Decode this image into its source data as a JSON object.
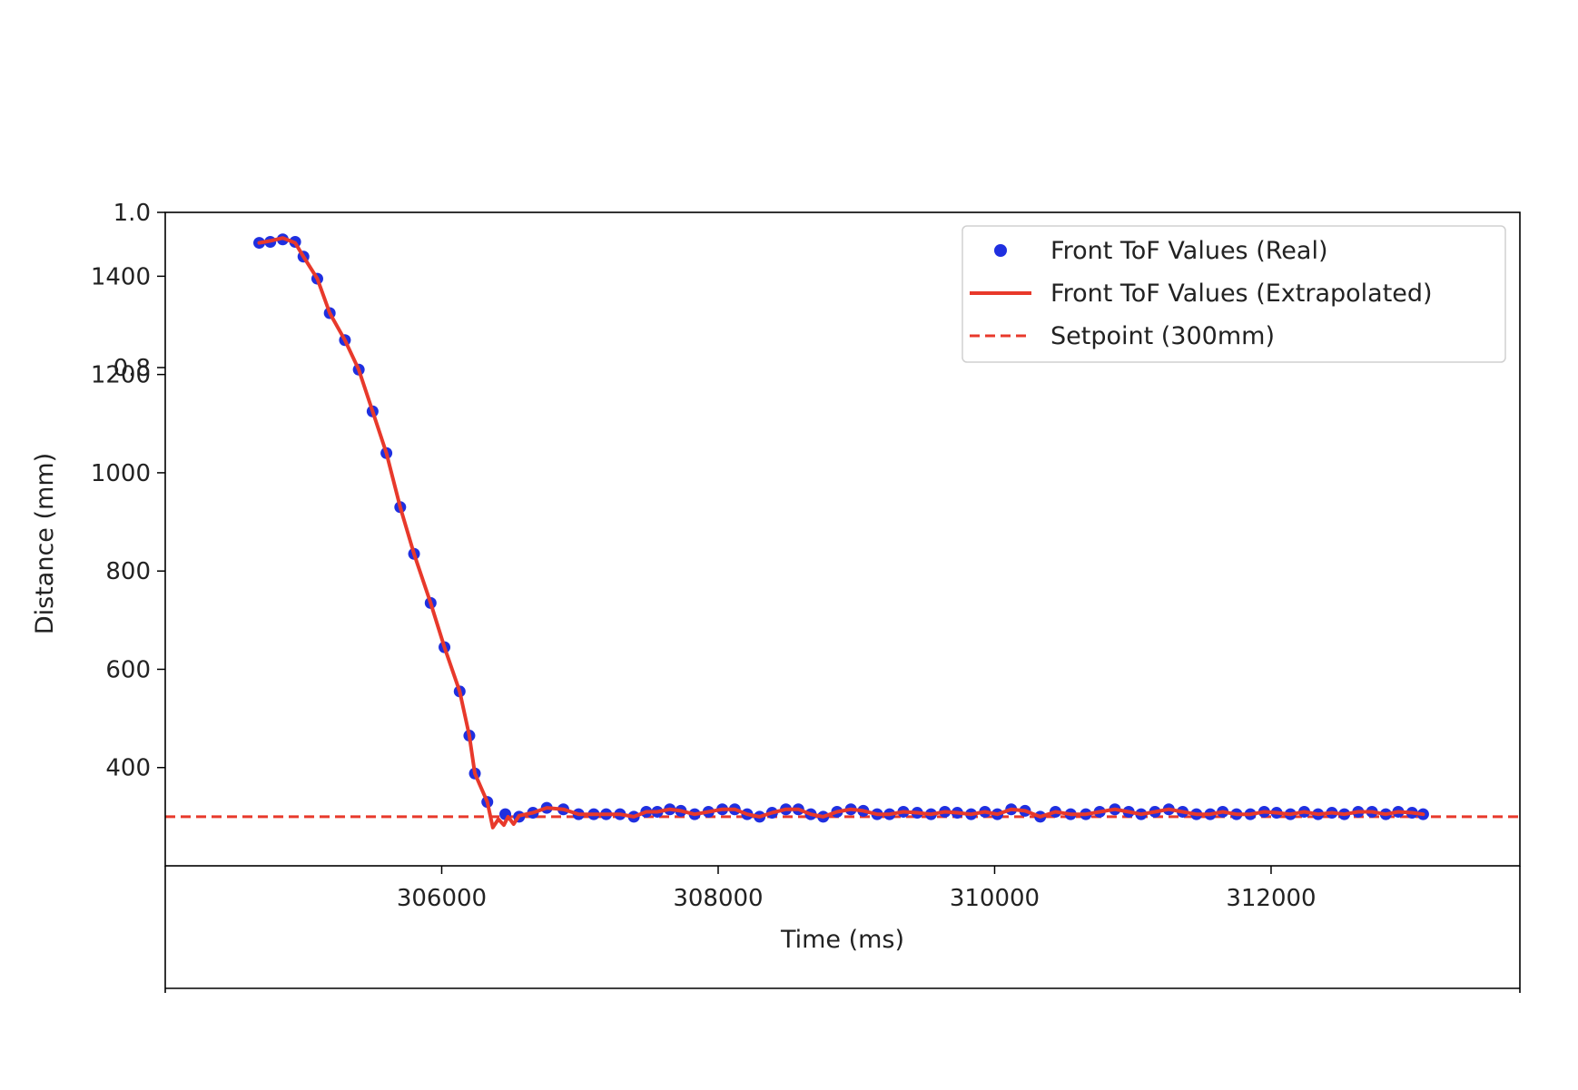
{
  "chart_data": {
    "type": "line",
    "xlabel": "Time (ms)",
    "ylabel": "Distance (mm)",
    "xlim": [
      304000,
      313800
    ],
    "ylim": [
      200,
      1530
    ],
    "x_ticks": [
      306000,
      308000,
      310000,
      312000
    ],
    "x_tick_labels": [
      "306000",
      "308000",
      "310000",
      "312000"
    ],
    "y_ticks": [
      400,
      600,
      800,
      1000,
      1200,
      1400
    ],
    "y_tick_labels": [
      "400",
      "600",
      "800",
      "1000",
      "1200",
      "1400"
    ],
    "second_axis": {
      "ylim": [
        0,
        1
      ],
      "y_ticks": [
        0.8,
        1.0
      ],
      "y_tick_labels": [
        "0.8",
        "1.0"
      ],
      "xlim": [
        0,
        1
      ]
    },
    "legend": {
      "placement": "upper right",
      "entries": [
        "Front ToF Values (Real)",
        "Front ToF Values (Extrapolated)",
        "Setpoint (300mm)"
      ]
    },
    "colors": {
      "real": "#1f2fe0",
      "extrapolated": "#e8392b",
      "setpoint": "#e8392b"
    },
    "series": [
      {
        "name": "Front ToF Values (Real)",
        "style": "scatter",
        "x": [
          304680,
          304760,
          304850,
          304940,
          305000,
          305100,
          305190,
          305300,
          305400,
          305500,
          305600,
          305700,
          305800,
          305920,
          306020,
          306130,
          306200,
          306240,
          306330,
          306460,
          306560,
          306660,
          306760,
          306880,
          306990,
          307100,
          307190,
          307290,
          307390,
          307480,
          307560,
          307650,
          307730,
          307830,
          307930,
          308030,
          308120,
          308210,
          308300,
          308390,
          308490,
          308580,
          308670,
          308760,
          308860,
          308960,
          309050,
          309150,
          309240,
          309340,
          309440,
          309540,
          309640,
          309730,
          309830,
          309930,
          310020,
          310120,
          310220,
          310330,
          310440,
          310550,
          310660,
          310760,
          310870,
          310970,
          311060,
          311160,
          311260,
          311360,
          311460,
          311560,
          311650,
          311750,
          311850,
          311950,
          312040,
          312140,
          312240,
          312340,
          312440,
          312530,
          312630,
          312730,
          312830,
          312920,
          313020,
          313100
        ],
        "y": [
          1468,
          1470,
          1475,
          1470,
          1440,
          1395,
          1325,
          1270,
          1210,
          1125,
          1040,
          930,
          835,
          735,
          645,
          555,
          465,
          388,
          330,
          305,
          300,
          308,
          318,
          315,
          305,
          305,
          305,
          305,
          300,
          310,
          310,
          315,
          312,
          305,
          310,
          315,
          315,
          305,
          300,
          308,
          315,
          315,
          305,
          300,
          310,
          315,
          312,
          305,
          305,
          310,
          308,
          305,
          310,
          308,
          305,
          310,
          305,
          315,
          312,
          300,
          310,
          305,
          305,
          310,
          315,
          310,
          305,
          310,
          315,
          310,
          305,
          305,
          310,
          305,
          305,
          310,
          308,
          305,
          310,
          305,
          308,
          305,
          310,
          310,
          305,
          310,
          308,
          305
        ]
      },
      {
        "name": "Front ToF Values (Extrapolated)",
        "style": "line",
        "x": [
          304680,
          304760,
          304850,
          304940,
          305000,
          305100,
          305190,
          305300,
          305400,
          305500,
          305600,
          305700,
          305800,
          305920,
          306020,
          306130,
          306200,
          306240,
          306330,
          306370,
          306410,
          306450,
          306480,
          306520,
          306560,
          306660,
          306760,
          306880,
          306990,
          307100,
          307190,
          307290,
          307390,
          307480,
          307560,
          307650,
          307730,
          307830,
          307930,
          308030,
          308120,
          308210,
          308300,
          308390,
          308490,
          308580,
          308670,
          308760,
          308860,
          308960,
          309050,
          309150,
          309240,
          309340,
          309440,
          309540,
          309640,
          309730,
          309830,
          309930,
          310020,
          310120,
          310220,
          310330,
          310440,
          310550,
          310660,
          310760,
          310870,
          310970,
          311060,
          311160,
          311260,
          311360,
          311460,
          311560,
          311650,
          311750,
          311850,
          311950,
          312040,
          312140,
          312240,
          312340,
          312440,
          312530,
          312630,
          312730,
          312830,
          312920,
          313020,
          313100
        ],
        "y": [
          1468,
          1472,
          1478,
          1468,
          1440,
          1395,
          1325,
          1270,
          1210,
          1125,
          1040,
          930,
          835,
          735,
          645,
          555,
          465,
          388,
          330,
          278,
          295,
          283,
          300,
          285,
          302,
          308,
          318,
          315,
          305,
          305,
          305,
          305,
          300,
          310,
          310,
          315,
          312,
          305,
          310,
          315,
          315,
          305,
          300,
          308,
          315,
          315,
          305,
          300,
          310,
          315,
          312,
          305,
          305,
          310,
          308,
          305,
          310,
          308,
          305,
          310,
          305,
          315,
          312,
          300,
          310,
          305,
          305,
          310,
          315,
          310,
          305,
          310,
          315,
          310,
          305,
          305,
          310,
          305,
          305,
          310,
          308,
          305,
          310,
          305,
          308,
          305,
          310,
          310,
          305,
          310,
          308,
          305
        ]
      },
      {
        "name": "Setpoint (300mm)",
        "style": "dashed-line",
        "y_constant": 300
      }
    ]
  }
}
